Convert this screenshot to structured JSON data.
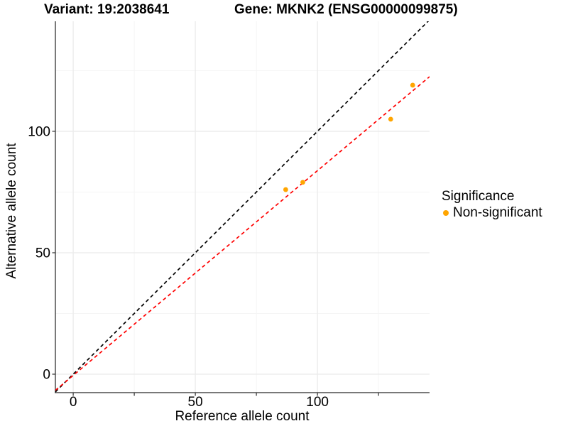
{
  "header": {
    "variant_title": "Variant: 19:2038641",
    "gene_title": "Gene: MKNK2 (ENSG00000099875)"
  },
  "colors": {
    "background": "#FFFFFF",
    "grid_major": "#EBEBEB",
    "grid_minor": "#F5F5F5",
    "axis": "#4D4D4D",
    "tick": "#333333",
    "text": "#000000",
    "point": "#FFA500",
    "identity_line": "#000000",
    "fit_line": "#FF0000"
  },
  "chart_data": {
    "type": "scatter",
    "title": "Variant: 19:2038641   Gene: MKNK2 (ENSG00000099875)",
    "xlabel": "Reference allele count",
    "ylabel": "Alternative allele count",
    "xlim": [
      -7.3,
      145.9
    ],
    "ylim": [
      -7.6,
      145.3
    ],
    "x_major_breaks": [
      0,
      50,
      100
    ],
    "y_major_breaks": [
      0,
      50,
      100
    ],
    "x_tick_values": [
      0,
      25,
      50,
      75,
      100,
      125
    ],
    "y_tick_values": [
      0,
      50,
      100
    ],
    "grid_major_breaks": [
      0,
      50,
      100
    ],
    "grid_minor_breaks": [
      25,
      75,
      125
    ],
    "grid": true,
    "series": [
      {
        "name": "Non-significant",
        "color": "#FFA500",
        "points": [
          [
            87,
            76
          ],
          [
            94,
            79
          ],
          [
            130,
            105
          ],
          [
            139,
            119
          ]
        ]
      }
    ],
    "lines": [
      {
        "name": "identity-line",
        "slope": 1.0,
        "intercept": 0.0,
        "color": "#000000",
        "style": "dashed"
      },
      {
        "name": "fit-line",
        "slope": 0.843,
        "intercept": -0.5,
        "color": "#FF0000",
        "style": "dashed"
      }
    ],
    "legend": {
      "position": "right",
      "title": "Significance",
      "items": [
        {
          "label": "Non-significant",
          "color": "#FFA500"
        }
      ]
    }
  }
}
